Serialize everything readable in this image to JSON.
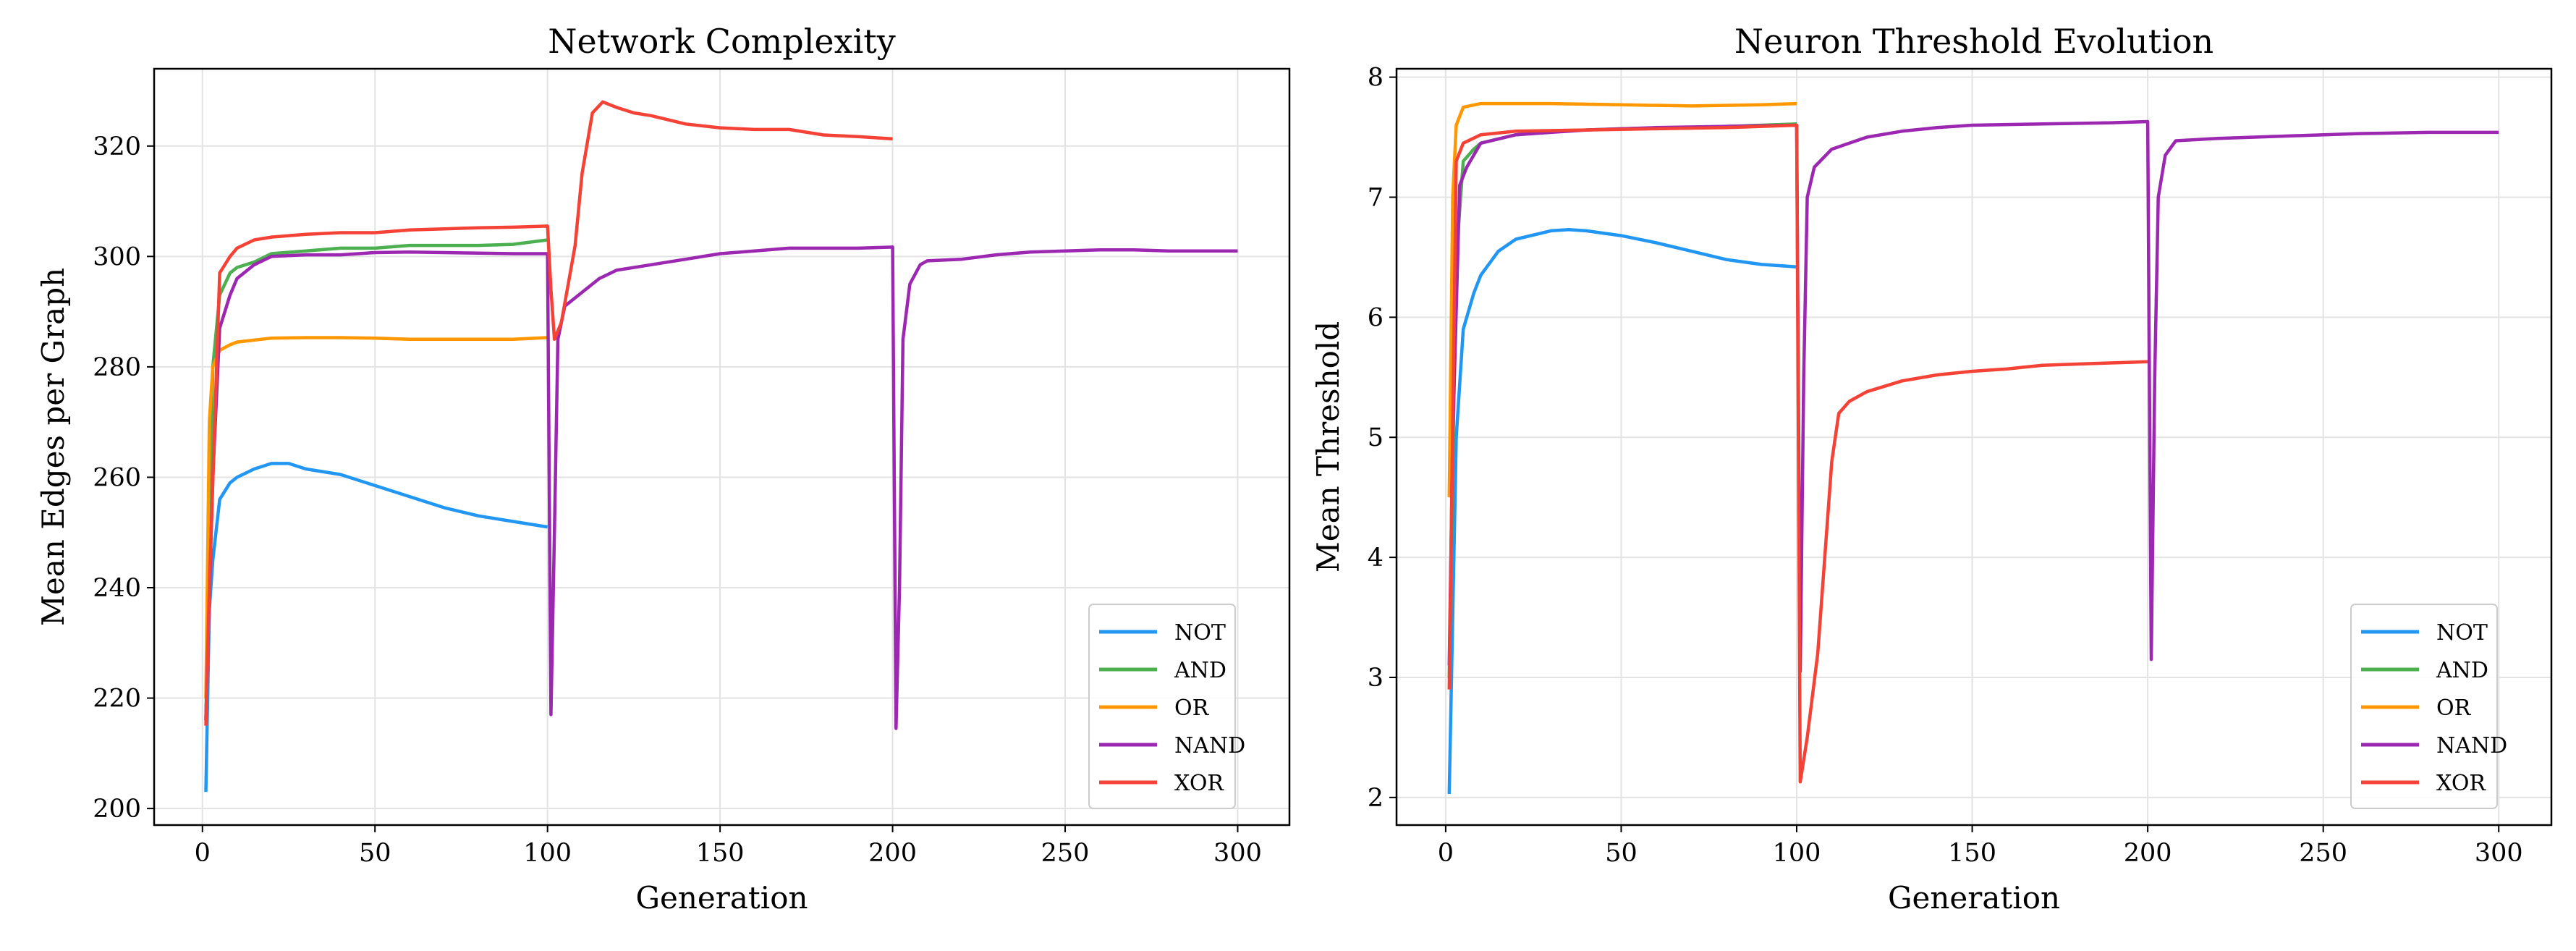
{
  "chart_data": [
    {
      "type": "line",
      "title": "Network Complexity",
      "xlabel": "Generation",
      "ylabel": "Mean Edges per Graph",
      "xlim": [
        -14,
        315
      ],
      "ylim": [
        197,
        334
      ],
      "xticks": [
        0,
        50,
        100,
        150,
        200,
        250,
        300
      ],
      "yticks": [
        200,
        220,
        240,
        260,
        280,
        300,
        320
      ],
      "grid": true,
      "legend_position": "lower-right",
      "series": [
        {
          "name": "NOT",
          "color": "#2196F3",
          "x": [
            1,
            2,
            3,
            5,
            8,
            10,
            15,
            20,
            25,
            30,
            40,
            50,
            60,
            70,
            80,
            90,
            100
          ],
          "y": [
            203,
            236,
            245,
            256,
            259,
            260,
            261.5,
            262.5,
            262.5,
            261.5,
            260.5,
            258.5,
            256.5,
            254.5,
            253,
            252,
            251
          ]
        },
        {
          "name": "AND",
          "color": "#4CAF50",
          "x": [
            1,
            2,
            3,
            5,
            8,
            10,
            15,
            20,
            30,
            40,
            50,
            60,
            70,
            80,
            90,
            100
          ],
          "y": [
            216,
            250,
            280,
            293,
            297,
            298,
            299,
            300.5,
            301,
            301.5,
            301.5,
            302,
            302,
            302,
            302.2,
            303
          ]
        },
        {
          "name": "OR",
          "color": "#FF9800",
          "x": [
            1,
            2,
            3,
            5,
            8,
            10,
            20,
            30,
            40,
            50,
            60,
            70,
            80,
            90,
            100
          ],
          "y": [
            220,
            270,
            280,
            283,
            284,
            284.5,
            285.2,
            285.3,
            285.3,
            285.2,
            285,
            285,
            285,
            285,
            285.3
          ]
        },
        {
          "name": "NAND",
          "color": "#9C27B0",
          "x": [
            1,
            3,
            5,
            8,
            10,
            15,
            20,
            30,
            40,
            50,
            60,
            70,
            80,
            90,
            100,
            101,
            102,
            103,
            105,
            110,
            115,
            120,
            130,
            140,
            150,
            160,
            170,
            180,
            190,
            200,
            201,
            202,
            203,
            205,
            208,
            210,
            220,
            230,
            240,
            250,
            260,
            270,
            280,
            290,
            300
          ],
          "y": [
            216,
            260,
            287,
            293,
            296,
            298.5,
            300,
            300.3,
            300.3,
            300.7,
            300.8,
            300.7,
            300.6,
            300.5,
            300.5,
            217,
            250,
            285,
            291,
            293.5,
            296,
            297.5,
            298.5,
            299.5,
            300.5,
            301,
            301.5,
            301.5,
            301.5,
            301.7,
            214.5,
            240,
            285,
            295,
            298.5,
            299.2,
            299.5,
            300.3,
            300.8,
            301,
            301.2,
            301.2,
            301,
            301,
            301
          ]
        },
        {
          "name": "XOR",
          "color": "#F44336",
          "x": [
            1,
            2,
            5,
            8,
            10,
            15,
            20,
            30,
            40,
            50,
            60,
            70,
            80,
            90,
            100,
            101,
            102,
            104,
            106,
            108,
            110,
            113,
            116,
            120,
            125,
            130,
            140,
            150,
            160,
            170,
            180,
            190,
            200
          ],
          "y": [
            215,
            240,
            297,
            300,
            301.5,
            303,
            303.5,
            304,
            304.3,
            304.3,
            304.8,
            305,
            305.2,
            305.3,
            305.5,
            294,
            285,
            288,
            295,
            302,
            315,
            326,
            328,
            327,
            326,
            325.5,
            324,
            323.3,
            323,
            323,
            322,
            321.7,
            321.3
          ]
        }
      ]
    },
    {
      "type": "line",
      "title": "Neuron Threshold Evolution",
      "xlabel": "Generation",
      "ylabel": "Mean Threshold",
      "xlim": [
        -14,
        315
      ],
      "ylim": [
        1.77,
        8.07
      ],
      "xticks": [
        0,
        50,
        100,
        150,
        200,
        250,
        300
      ],
      "yticks": [
        2,
        3,
        4,
        5,
        6,
        7,
        8
      ],
      "grid": true,
      "legend_position": "lower-right",
      "series": [
        {
          "name": "NOT",
          "color": "#2196F3",
          "x": [
            1,
            2,
            3,
            5,
            8,
            10,
            15,
            20,
            30,
            35,
            40,
            50,
            60,
            70,
            80,
            90,
            100
          ],
          "y": [
            2.03,
            3.5,
            5.0,
            5.9,
            6.2,
            6.35,
            6.55,
            6.65,
            6.72,
            6.73,
            6.72,
            6.68,
            6.62,
            6.55,
            6.48,
            6.44,
            6.42
          ]
        },
        {
          "name": "AND",
          "color": "#4CAF50",
          "x": [
            1,
            3,
            5,
            8,
            10,
            20,
            30,
            50,
            70,
            90,
            100
          ],
          "y": [
            3.0,
            6.5,
            7.3,
            7.4,
            7.45,
            7.52,
            7.55,
            7.57,
            7.58,
            7.6,
            7.61
          ]
        },
        {
          "name": "OR",
          "color": "#FF9800",
          "x": [
            1,
            2,
            3,
            5,
            10,
            30,
            50,
            70,
            90,
            100
          ],
          "y": [
            4.5,
            7.0,
            7.6,
            7.75,
            7.78,
            7.78,
            7.77,
            7.76,
            7.77,
            7.78
          ]
        },
        {
          "name": "NAND",
          "color": "#9C27B0",
          "x": [
            1,
            2,
            4,
            6,
            10,
            20,
            40,
            60,
            80,
            100,
            101,
            102,
            103,
            105,
            110,
            115,
            120,
            130,
            140,
            150,
            170,
            190,
            200,
            201,
            202,
            203,
            205,
            208,
            220,
            240,
            260,
            280,
            300
          ],
          "y": [
            3.1,
            5.0,
            7.1,
            7.25,
            7.45,
            7.52,
            7.56,
            7.58,
            7.59,
            7.6,
            3.05,
            5.5,
            7.0,
            7.25,
            7.4,
            7.45,
            7.5,
            7.55,
            7.58,
            7.6,
            7.61,
            7.62,
            7.63,
            3.15,
            5.5,
            7.0,
            7.35,
            7.47,
            7.49,
            7.51,
            7.53,
            7.54,
            7.54
          ]
        },
        {
          "name": "XOR",
          "color": "#F44336",
          "x": [
            1,
            3,
            5,
            10,
            20,
            40,
            60,
            80,
            100,
            101,
            103,
            106,
            108,
            110,
            112,
            115,
            120,
            130,
            140,
            150,
            160,
            170,
            180,
            190,
            200
          ],
          "y": [
            2.9,
            7.3,
            7.45,
            7.52,
            7.55,
            7.56,
            7.57,
            7.58,
            7.6,
            2.13,
            2.5,
            3.2,
            4.0,
            4.8,
            5.2,
            5.3,
            5.38,
            5.47,
            5.52,
            5.55,
            5.57,
            5.6,
            5.61,
            5.62,
            5.63
          ]
        }
      ]
    }
  ]
}
